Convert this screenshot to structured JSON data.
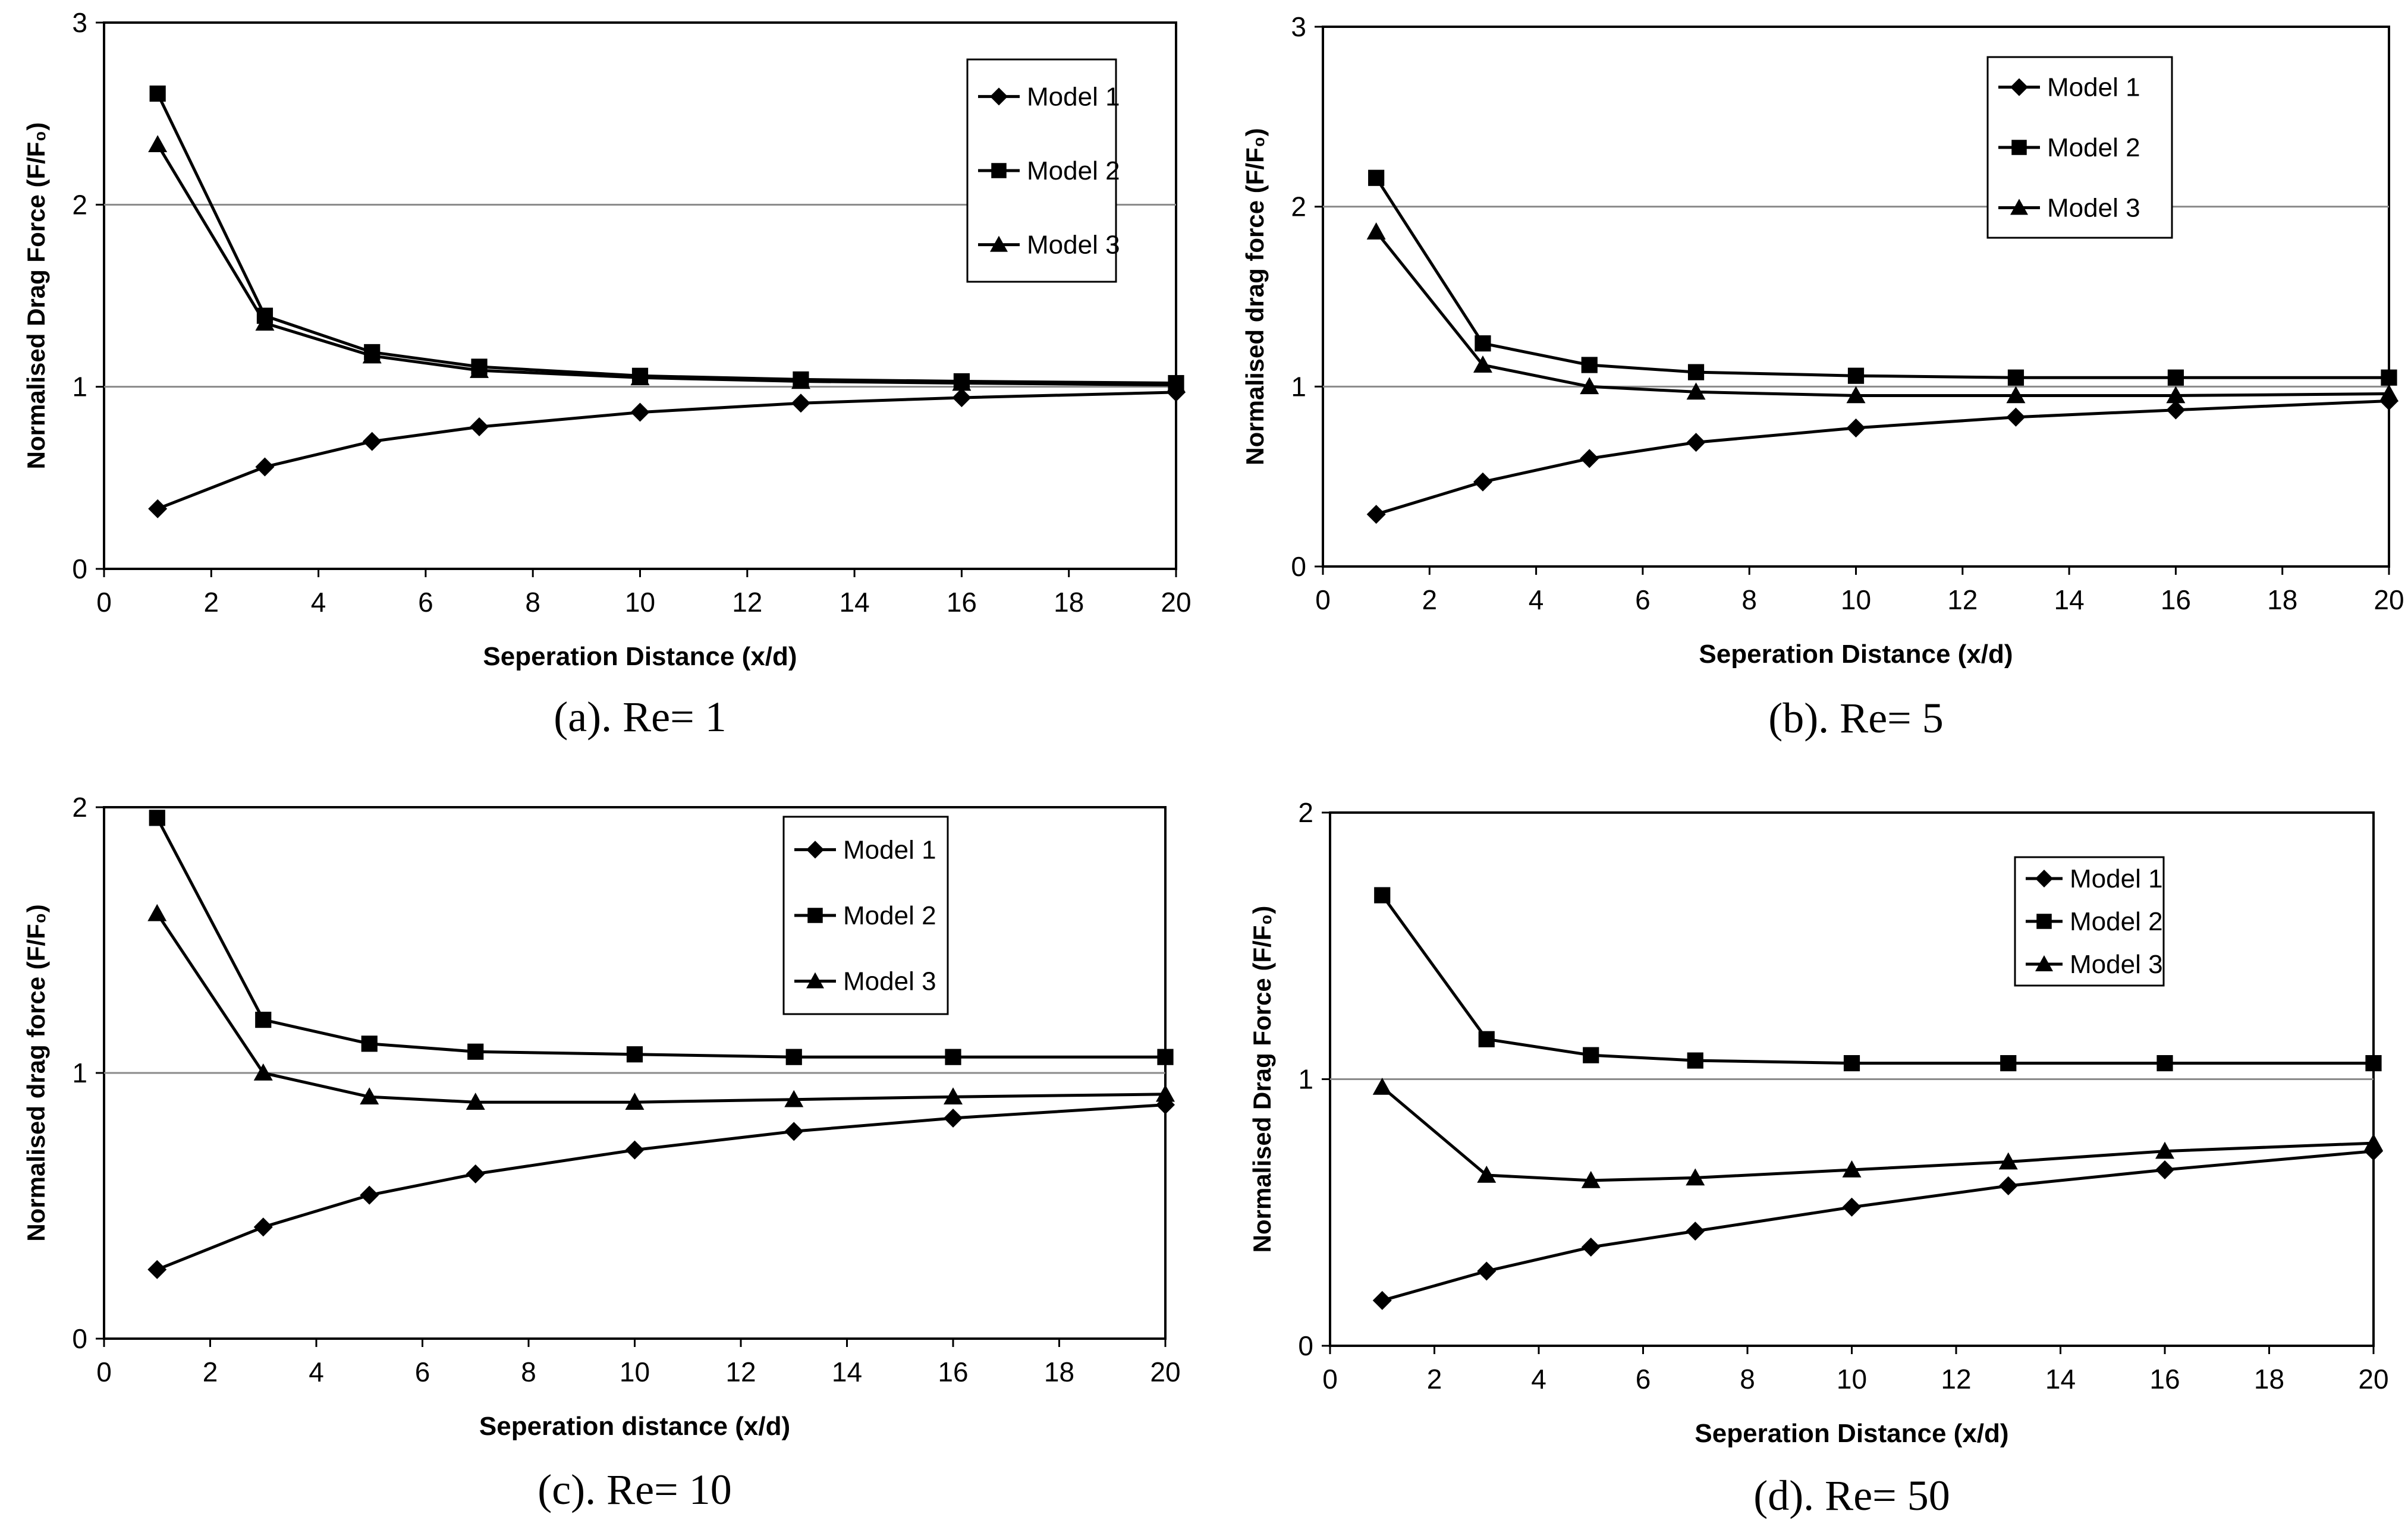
{
  "chart_data": [
    {
      "type": "line",
      "panel": "a",
      "caption": "(a). Re= 1",
      "ylabel": "Normalised Drag Force (F/F₀)",
      "xlabel": "Seperation Distance (x/d)",
      "ylim": [
        0,
        3
      ],
      "yticks": [
        0,
        1,
        2,
        3
      ],
      "xlim": [
        0,
        20
      ],
      "xticks": [
        0,
        2,
        4,
        6,
        8,
        10,
        12,
        14,
        16,
        18,
        20
      ],
      "x": [
        1,
        3,
        5,
        7,
        10,
        13,
        16,
        20
      ],
      "gridlines": [
        1,
        2
      ],
      "legend_position": "top-right",
      "series": [
        {
          "name": "Model 1",
          "marker": "diamond",
          "values": [
            0.33,
            0.56,
            0.7,
            0.78,
            0.86,
            0.91,
            0.94,
            0.97
          ]
        },
        {
          "name": "Model 2",
          "marker": "square",
          "values": [
            2.61,
            1.39,
            1.19,
            1.11,
            1.06,
            1.04,
            1.03,
            1.02
          ]
        },
        {
          "name": "Model 3",
          "marker": "triangle",
          "values": [
            2.33,
            1.35,
            1.17,
            1.09,
            1.05,
            1.03,
            1.02,
            1.01
          ]
        }
      ]
    },
    {
      "type": "line",
      "panel": "b",
      "caption": "(b). Re= 5",
      "ylabel": "Normalised drag force (F/F₀)",
      "xlabel": "Seperation Distance (x/d)",
      "ylim": [
        0,
        3
      ],
      "yticks": [
        0,
        1,
        2,
        3
      ],
      "xlim": [
        0,
        20
      ],
      "xticks": [
        0,
        2,
        4,
        6,
        8,
        10,
        12,
        14,
        16,
        18,
        20
      ],
      "x": [
        1,
        3,
        5,
        7,
        10,
        13,
        16,
        20
      ],
      "gridlines": [
        1,
        2
      ],
      "legend_position": "top-right",
      "series": [
        {
          "name": "Model 1",
          "marker": "diamond",
          "values": [
            0.29,
            0.47,
            0.6,
            0.69,
            0.77,
            0.83,
            0.87,
            0.92
          ]
        },
        {
          "name": "Model 2",
          "marker": "square",
          "values": [
            2.16,
            1.24,
            1.12,
            1.08,
            1.06,
            1.05,
            1.05,
            1.05
          ]
        },
        {
          "name": "Model 3",
          "marker": "triangle",
          "values": [
            1.86,
            1.12,
            1.0,
            0.97,
            0.95,
            0.95,
            0.95,
            0.96
          ]
        }
      ]
    },
    {
      "type": "line",
      "panel": "c",
      "caption": "(c). Re= 10",
      "ylabel": "Normalised drag force (F/F₀)",
      "xlabel": "Seperation distance (x/d)",
      "ylim": [
        0,
        2
      ],
      "yticks": [
        0,
        1,
        2
      ],
      "xlim": [
        0,
        20
      ],
      "xticks": [
        0,
        2,
        4,
        6,
        8,
        10,
        12,
        14,
        16,
        18,
        20
      ],
      "x": [
        1,
        3,
        5,
        7,
        10,
        13,
        16,
        20
      ],
      "gridlines": [
        1
      ],
      "legend_position": "top-right",
      "series": [
        {
          "name": "Model 1",
          "marker": "diamond",
          "values": [
            0.26,
            0.42,
            0.54,
            0.62,
            0.71,
            0.78,
            0.83,
            0.88
          ]
        },
        {
          "name": "Model 2",
          "marker": "square",
          "values": [
            1.96,
            1.2,
            1.11,
            1.08,
            1.07,
            1.06,
            1.06,
            1.06
          ]
        },
        {
          "name": "Model 3",
          "marker": "triangle",
          "values": [
            1.6,
            1.0,
            0.91,
            0.89,
            0.89,
            0.9,
            0.91,
            0.92
          ]
        }
      ]
    },
    {
      "type": "line",
      "panel": "d",
      "caption": "(d). Re= 50",
      "ylabel": "Normalised Drag Force (F/F₀)",
      "xlabel": "Seperation Distance (x/d)",
      "ylim": [
        0,
        2
      ],
      "yticks": [
        0,
        1,
        2
      ],
      "xlim": [
        0,
        20
      ],
      "xticks": [
        0,
        2,
        4,
        6,
        8,
        10,
        12,
        14,
        16,
        18,
        20
      ],
      "x": [
        1,
        3,
        5,
        7,
        10,
        13,
        16,
        20
      ],
      "gridlines": [
        1
      ],
      "legend_position": "top-right",
      "series": [
        {
          "name": "Model 1",
          "marker": "diamond",
          "values": [
            0.17,
            0.28,
            0.37,
            0.43,
            0.52,
            0.6,
            0.66,
            0.73
          ]
        },
        {
          "name": "Model 2",
          "marker": "square",
          "values": [
            1.69,
            1.15,
            1.09,
            1.07,
            1.06,
            1.06,
            1.06,
            1.06
          ]
        },
        {
          "name": "Model 3",
          "marker": "triangle",
          "values": [
            0.97,
            0.64,
            0.62,
            0.63,
            0.66,
            0.69,
            0.73,
            0.76
          ]
        }
      ]
    }
  ]
}
